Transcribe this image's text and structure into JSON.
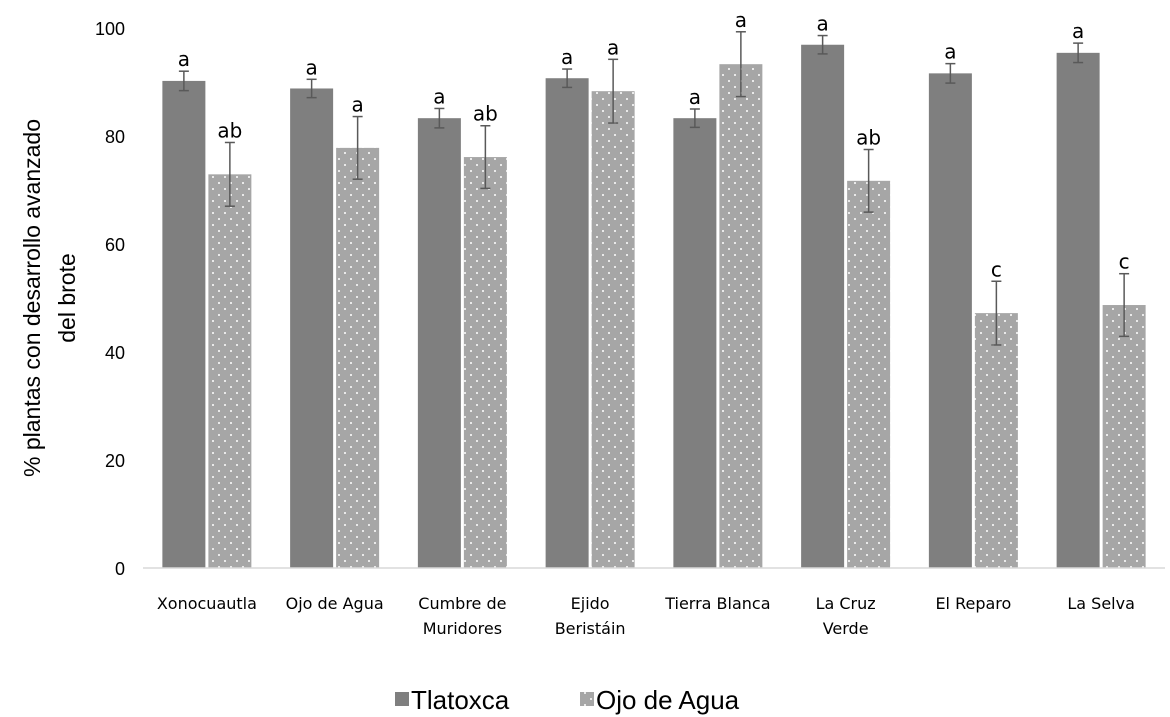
{
  "chart_data": {
    "type": "bar",
    "title": "",
    "xlabel": "",
    "ylabel_lines": [
      "% plantas con desarrollo avanzado",
      "del brote"
    ],
    "ylim": [
      0,
      100
    ],
    "yticks": [
      0,
      20,
      40,
      60,
      80,
      100
    ],
    "categories": [
      [
        "Xonocuautla"
      ],
      [
        "Ojo de Agua"
      ],
      [
        "Cumbre de",
        "Muridores"
      ],
      [
        "Ejido",
        "Beristáin"
      ],
      [
        "Tierra Blanca"
      ],
      [
        "La Cruz",
        "Verde"
      ],
      [
        "El Reparo"
      ],
      [
        "La Selva"
      ]
    ],
    "series": [
      {
        "name": "Tlatoxca",
        "color": "#7f7f7f",
        "pattern": "solid",
        "values": [
          90.2,
          88.8,
          83.3,
          90.7,
          83.3,
          96.9,
          91.6,
          95.4
        ],
        "errors": [
          1.8,
          1.7,
          1.8,
          1.7,
          1.7,
          1.7,
          1.8,
          1.8
        ],
        "labels": [
          "a",
          "a",
          "a",
          "a",
          "a",
          "a",
          "a",
          "a"
        ]
      },
      {
        "name": "Ojo de Agua",
        "color": "#a6a6a6",
        "pattern": "dotted",
        "values": [
          72.9,
          77.8,
          76.1,
          88.3,
          93.3,
          71.7,
          47.2,
          48.7
        ],
        "errors": [
          5.9,
          5.8,
          5.8,
          5.9,
          6.0,
          5.8,
          5.9,
          5.8
        ],
        "labels": [
          "ab",
          "a",
          "ab",
          "a",
          "a",
          "ab",
          "c",
          "c"
        ]
      }
    ],
    "legend_position": "bottom-center",
    "grid": false
  }
}
